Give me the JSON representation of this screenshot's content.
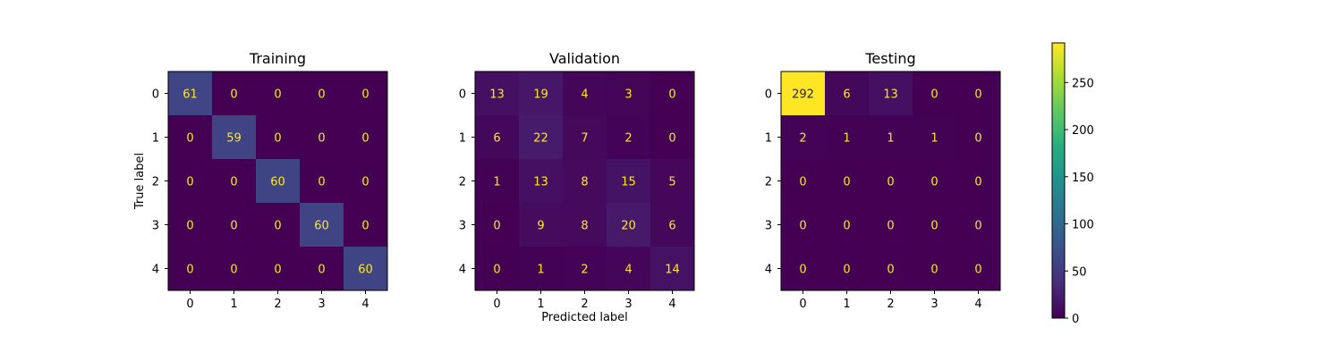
{
  "chart_data": {
    "type": "heatmap",
    "colormap": "viridis",
    "color_scale": {
      "min": 0,
      "max": 292,
      "ticks": [
        0,
        50,
        100,
        150,
        200,
        250
      ]
    },
    "xlabel": "Predicted label",
    "ylabel": "True label",
    "tick_labels": [
      "0",
      "1",
      "2",
      "3",
      "4"
    ],
    "panels": [
      {
        "title": "Training",
        "matrix": [
          [
            61,
            0,
            0,
            0,
            0
          ],
          [
            0,
            59,
            0,
            0,
            0
          ],
          [
            0,
            0,
            60,
            0,
            0
          ],
          [
            0,
            0,
            0,
            60,
            0
          ],
          [
            0,
            0,
            0,
            0,
            60
          ]
        ]
      },
      {
        "title": "Validation",
        "matrix": [
          [
            13,
            19,
            4,
            3,
            0
          ],
          [
            6,
            22,
            7,
            2,
            0
          ],
          [
            1,
            13,
            8,
            15,
            5
          ],
          [
            0,
            9,
            8,
            20,
            6
          ],
          [
            0,
            1,
            2,
            4,
            14
          ]
        ]
      },
      {
        "title": "Testing",
        "matrix": [
          [
            292,
            6,
            13,
            0,
            0
          ],
          [
            2,
            1,
            1,
            1,
            0
          ],
          [
            0,
            0,
            0,
            0,
            0
          ],
          [
            0,
            0,
            0,
            0,
            0
          ],
          [
            0,
            0,
            0,
            0,
            0
          ]
        ]
      }
    ]
  }
}
